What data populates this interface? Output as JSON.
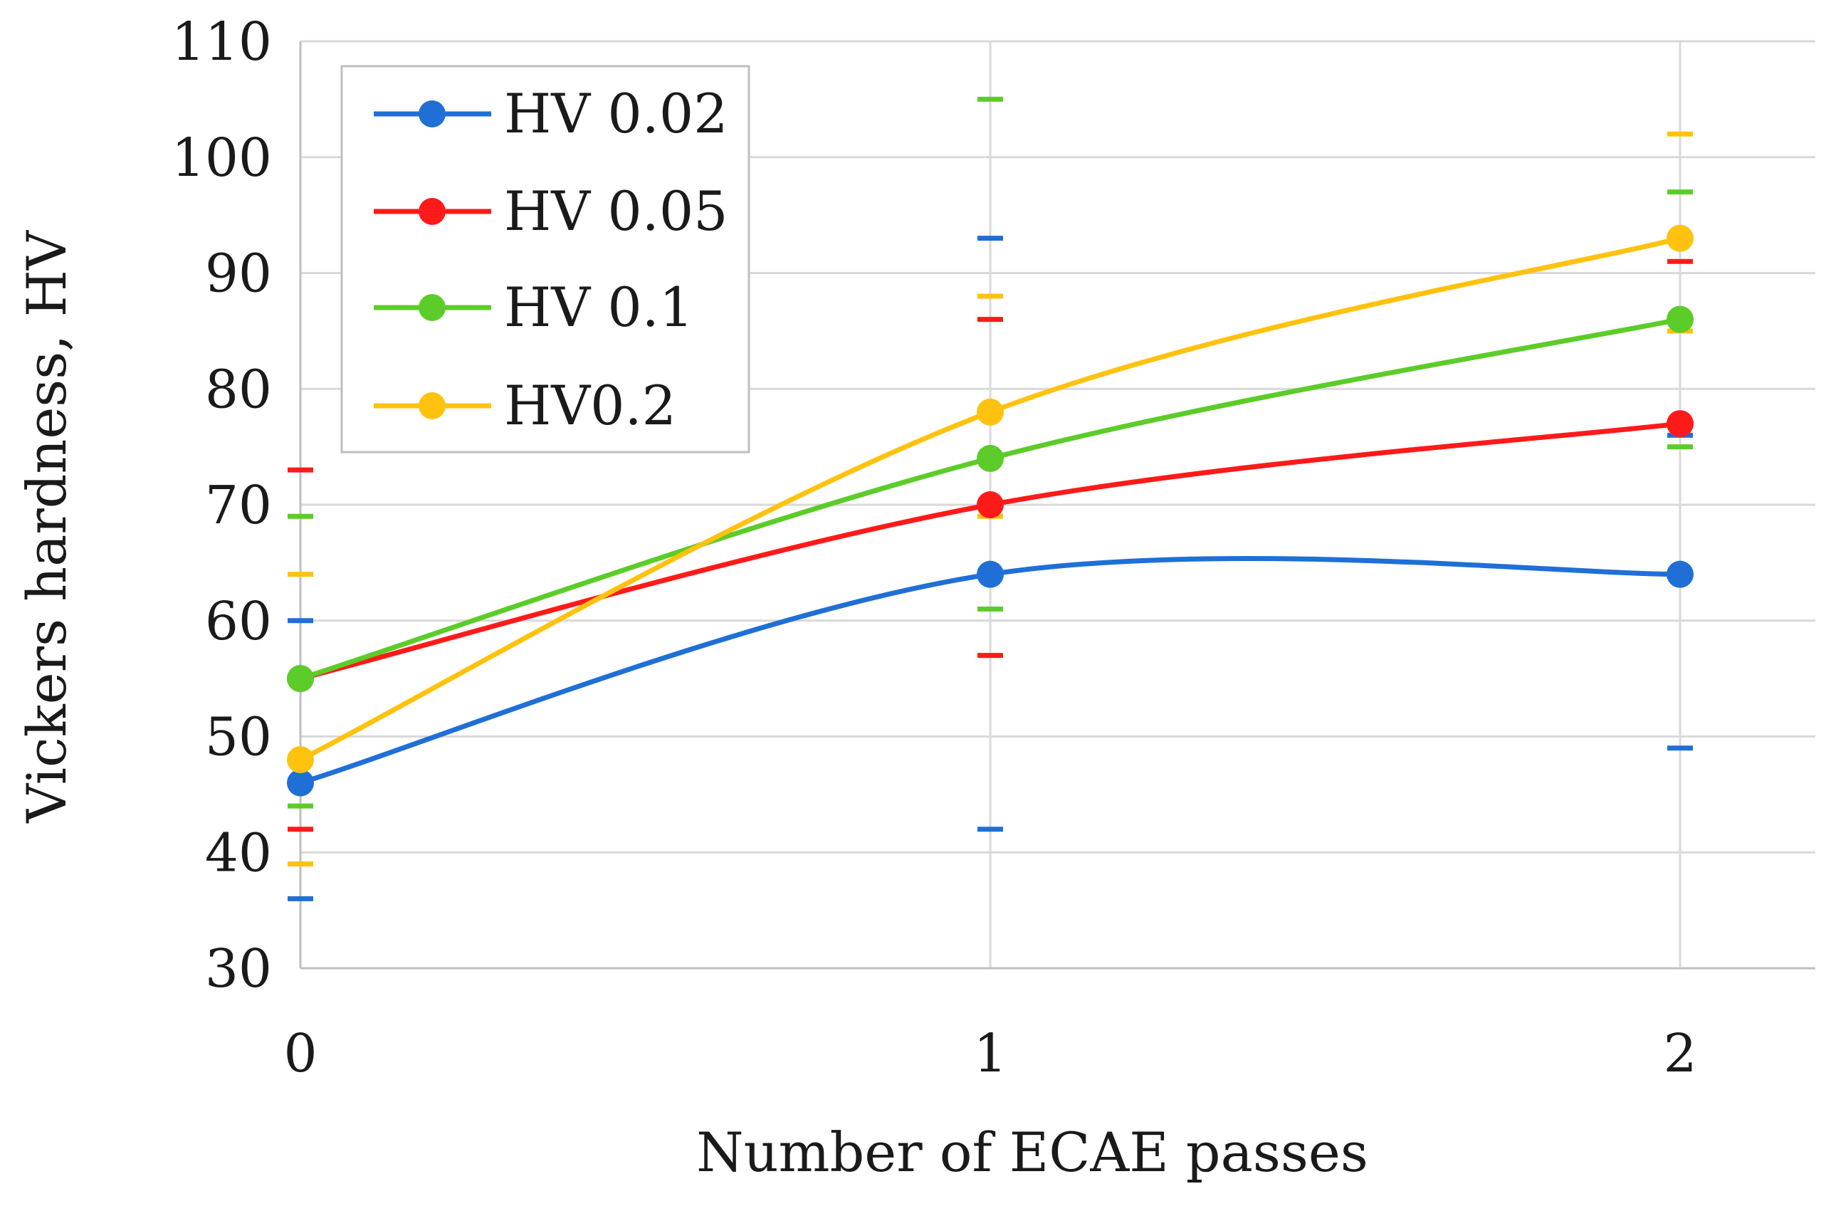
{
  "chart_data": {
    "type": "line",
    "title": "",
    "xlabel": "Number of ECAE passes",
    "ylabel": "Vickers hardness, HV",
    "x": [
      0,
      1,
      2
    ],
    "x_tick_labels": [
      "0",
      "1",
      "2"
    ],
    "xlim": [
      0,
      2.2
    ],
    "ylim": [
      30,
      110
    ],
    "y_ticks": [
      30,
      40,
      50,
      60,
      70,
      80,
      90,
      100,
      110
    ],
    "grid": true,
    "smooth": true,
    "legend": "top-left",
    "series": [
      {
        "name": "HV 0.02",
        "color": "#1f6fd6",
        "values": [
          46,
          64,
          64
        ],
        "err_low": [
          36,
          42,
          49
        ],
        "err_high": [
          60,
          93,
          76
        ]
      },
      {
        "name": "HV 0.05",
        "color": "#ff1a1a",
        "values": [
          55,
          70,
          77
        ],
        "err_low": [
          42,
          57,
          64
        ],
        "err_high": [
          73,
          86,
          91
        ]
      },
      {
        "name": "HV 0.1",
        "color": "#5ccc29",
        "values": [
          55,
          74,
          86
        ],
        "err_low": [
          44,
          61,
          75
        ],
        "err_high": [
          69,
          105,
          97
        ]
      },
      {
        "name": "HV0.2",
        "color": "#ffc20e",
        "values": [
          48,
          78,
          93
        ],
        "err_low": [
          39,
          69,
          85
        ],
        "err_high": [
          64,
          88,
          102
        ]
      }
    ]
  }
}
